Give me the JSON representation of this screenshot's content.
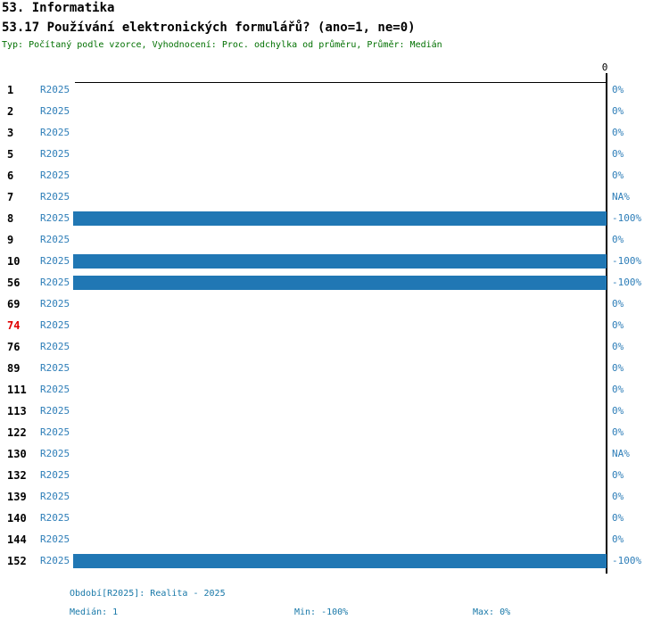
{
  "header": {
    "title1": "53. Informatika",
    "title2": "53.17 Používání elektronických formulářů? (ano=1, ne=0)",
    "subtitle": "Typ: Počítaný podle vzorce, Vyhodnocení: Proc. odchylka od průměru, Průměr: Medián"
  },
  "axis": {
    "zero_label": "0"
  },
  "chart_data": {
    "type": "bar",
    "orientation": "horizontal",
    "title": "53.17 Používání elektronických formulářů? (ano=1, ne=0)",
    "period_label": "R2025",
    "xlim": [
      -100,
      0
    ],
    "bar_color": "#2077b4",
    "highlight_color": "#e00000",
    "rows": [
      {
        "id": "1",
        "value": 0,
        "value_label": "0%",
        "highlight": false
      },
      {
        "id": "2",
        "value": 0,
        "value_label": "0%",
        "highlight": false
      },
      {
        "id": "3",
        "value": 0,
        "value_label": "0%",
        "highlight": false
      },
      {
        "id": "5",
        "value": 0,
        "value_label": "0%",
        "highlight": false
      },
      {
        "id": "6",
        "value": 0,
        "value_label": "0%",
        "highlight": false
      },
      {
        "id": "7",
        "value": null,
        "value_label": "NA%",
        "highlight": false
      },
      {
        "id": "8",
        "value": -100,
        "value_label": "-100%",
        "highlight": false
      },
      {
        "id": "9",
        "value": 0,
        "value_label": "0%",
        "highlight": false
      },
      {
        "id": "10",
        "value": -100,
        "value_label": "-100%",
        "highlight": false
      },
      {
        "id": "56",
        "value": -100,
        "value_label": "-100%",
        "highlight": false
      },
      {
        "id": "69",
        "value": 0,
        "value_label": "0%",
        "highlight": false
      },
      {
        "id": "74",
        "value": 0,
        "value_label": "0%",
        "highlight": true
      },
      {
        "id": "76",
        "value": 0,
        "value_label": "0%",
        "highlight": false
      },
      {
        "id": "89",
        "value": 0,
        "value_label": "0%",
        "highlight": false
      },
      {
        "id": "111",
        "value": 0,
        "value_label": "0%",
        "highlight": false
      },
      {
        "id": "113",
        "value": 0,
        "value_label": "0%",
        "highlight": false
      },
      {
        "id": "122",
        "value": 0,
        "value_label": "0%",
        "highlight": false
      },
      {
        "id": "130",
        "value": null,
        "value_label": "NA%",
        "highlight": false
      },
      {
        "id": "132",
        "value": 0,
        "value_label": "0%",
        "highlight": false
      },
      {
        "id": "139",
        "value": 0,
        "value_label": "0%",
        "highlight": false
      },
      {
        "id": "140",
        "value": 0,
        "value_label": "0%",
        "highlight": false
      },
      {
        "id": "144",
        "value": 0,
        "value_label": "0%",
        "highlight": false
      },
      {
        "id": "152",
        "value": -100,
        "value_label": "-100%",
        "highlight": false
      }
    ]
  },
  "footer": {
    "period": "Období[R2025]: Realita - 2025",
    "median": "Medián: 1",
    "min": "Min: -100%",
    "max": "Max: 0%"
  },
  "colors": {
    "bar": "#2077b4",
    "label_blue": "#2e7eb8",
    "footer_blue": "#1878a8",
    "subtitle_green": "#007000",
    "highlight_red": "#e00000",
    "axis_black": "#000000"
  }
}
